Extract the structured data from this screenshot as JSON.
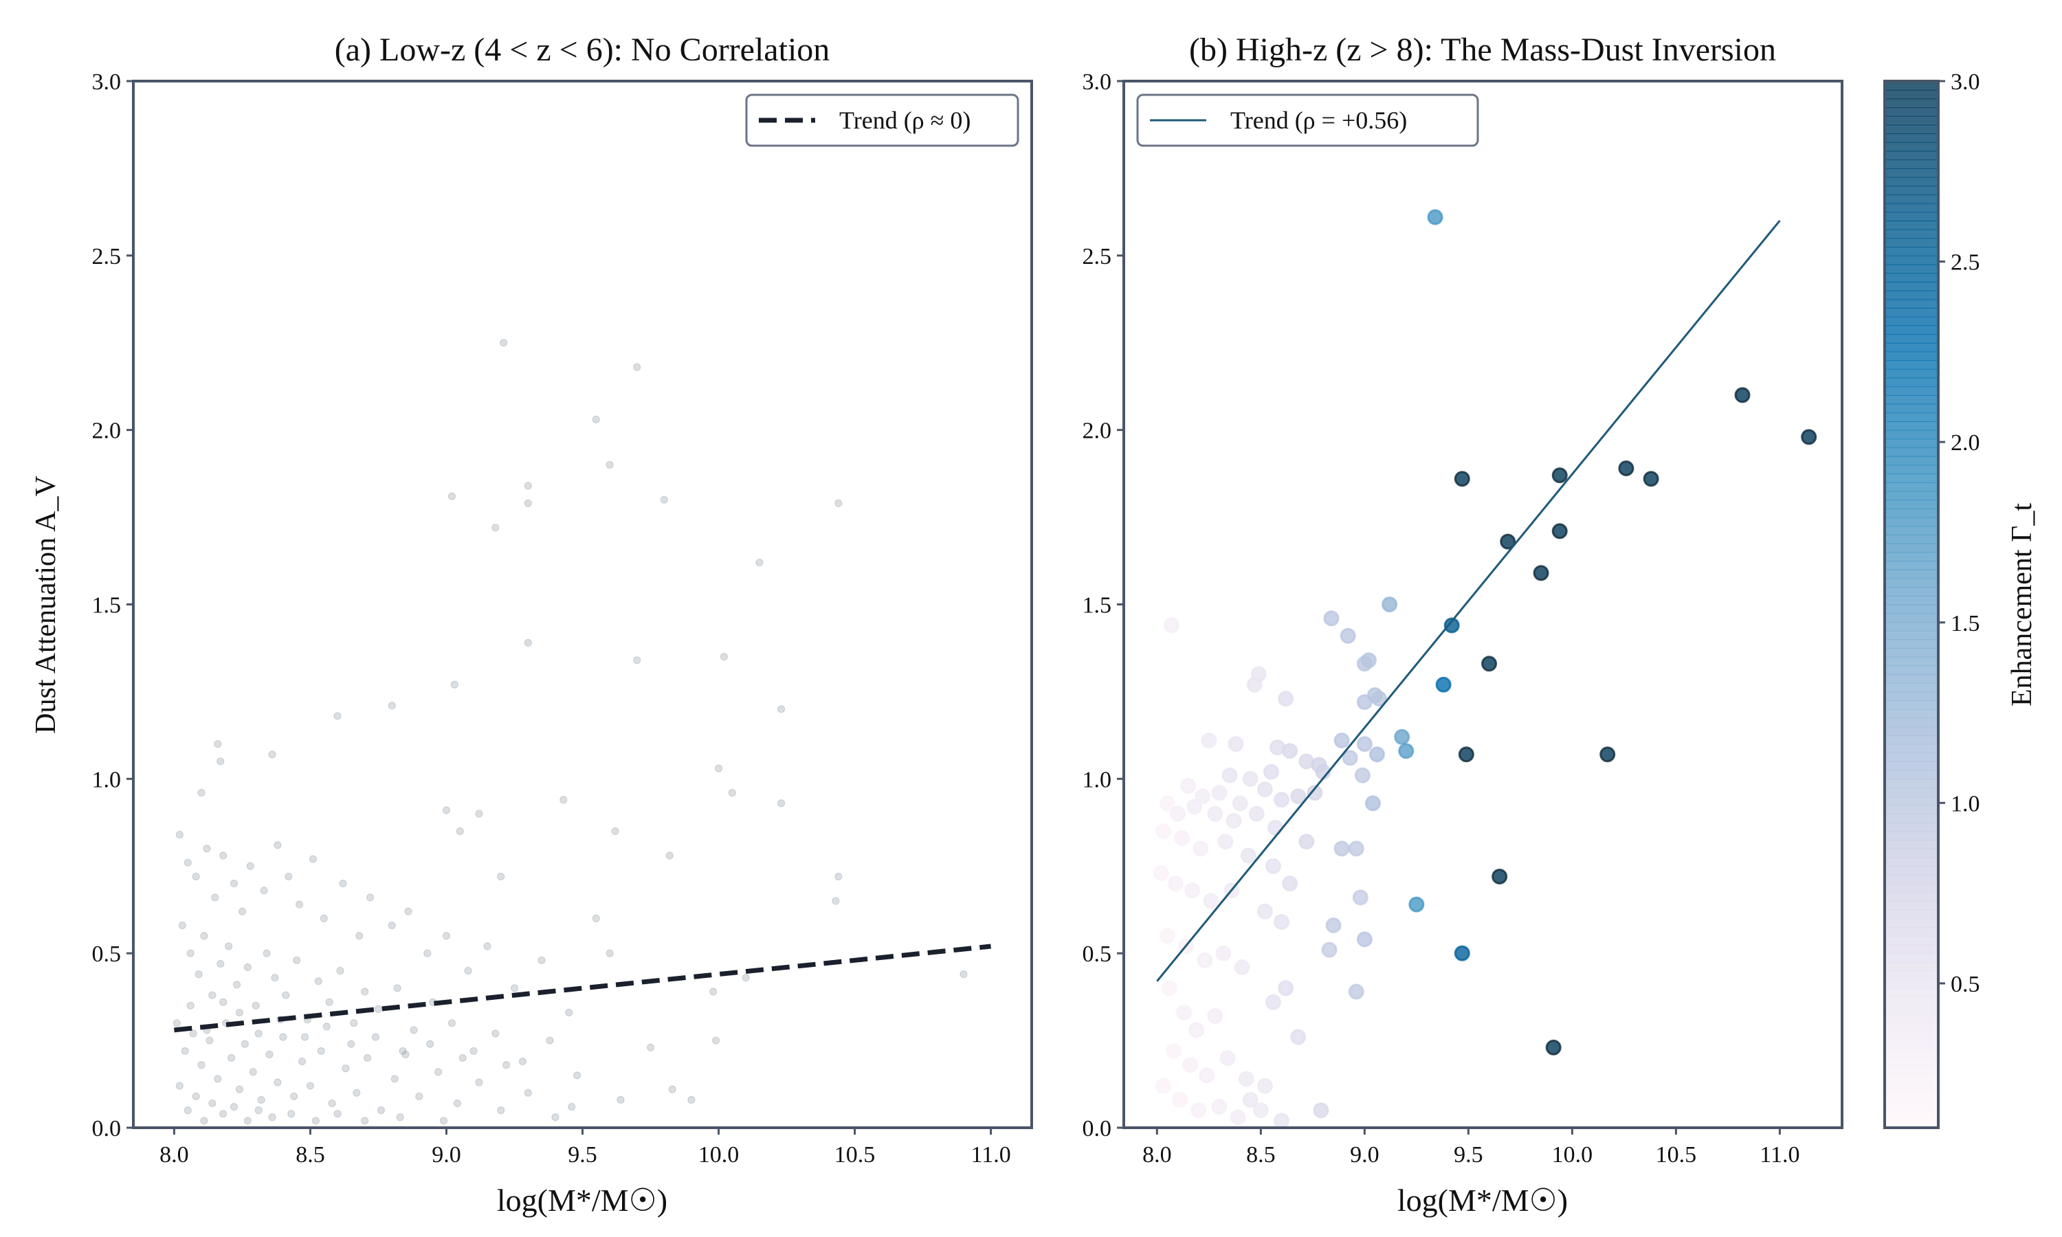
{
  "chart_data": [
    {
      "type": "scatter",
      "title": "(a) Low-z (4 < z < 6): No Correlation",
      "xlabel": "log(M*/M☉)",
      "ylabel": "Dust Attenuation A_V",
      "xlim": [
        7.85,
        11.15
      ],
      "ylim": [
        0,
        3.0
      ],
      "xticks": [
        "8.0",
        "8.5",
        "9.0",
        "9.5",
        "10.0",
        "10.5",
        "11.0"
      ],
      "yticks": [
        "0.0",
        "0.5",
        "1.0",
        "1.5",
        "2.0",
        "2.5",
        "3.0"
      ],
      "grid": false,
      "legend": {
        "placement": "top-right",
        "entries": [
          {
            "label": "Trend (ρ ≈ 0)",
            "style": "dashed",
            "color": "#1a202c"
          }
        ]
      },
      "point_color": "#8a949e",
      "trend": {
        "x": [
          8.0,
          11.0
        ],
        "y": [
          0.28,
          0.52
        ],
        "color": "#1a202c",
        "style": "dashed"
      },
      "points": [
        [
          9.21,
          2.25
        ],
        [
          9.7,
          2.18
        ],
        [
          9.55,
          2.03
        ],
        [
          9.6,
          1.9
        ],
        [
          9.02,
          1.81
        ],
        [
          9.3,
          1.84
        ],
        [
          9.3,
          1.79
        ],
        [
          9.8,
          1.8
        ],
        [
          10.44,
          1.79
        ],
        [
          9.18,
          1.72
        ],
        [
          10.15,
          1.62
        ],
        [
          9.3,
          1.39
        ],
        [
          9.7,
          1.34
        ],
        [
          10.02,
          1.35
        ],
        [
          9.03,
          1.27
        ],
        [
          8.8,
          1.21
        ],
        [
          10.23,
          1.2
        ],
        [
          8.6,
          1.18
        ],
        [
          8.16,
          1.1
        ],
        [
          8.17,
          1.05
        ],
        [
          8.36,
          1.07
        ],
        [
          8.1,
          0.96
        ],
        [
          10.0,
          1.03
        ],
        [
          10.05,
          0.96
        ],
        [
          10.23,
          0.93
        ],
        [
          9.43,
          0.94
        ],
        [
          9.0,
          0.91
        ],
        [
          9.12,
          0.9
        ],
        [
          9.05,
          0.85
        ],
        [
          9.62,
          0.85
        ],
        [
          9.82,
          0.78
        ],
        [
          10.44,
          0.72
        ],
        [
          10.43,
          0.65
        ],
        [
          10.9,
          0.44
        ],
        [
          9.2,
          0.72
        ],
        [
          10.1,
          0.43
        ],
        [
          9.98,
          0.39
        ],
        [
          9.99,
          0.25
        ],
        [
          9.55,
          0.6
        ],
        [
          9.6,
          0.5
        ],
        [
          9.75,
          0.23
        ],
        [
          9.83,
          0.11
        ],
        [
          9.64,
          0.08
        ],
        [
          9.46,
          0.06
        ],
        [
          9.9,
          0.08
        ],
        [
          8.02,
          0.84
        ],
        [
          8.05,
          0.76
        ],
        [
          8.08,
          0.72
        ],
        [
          8.12,
          0.8
        ],
        [
          8.15,
          0.66
        ],
        [
          8.18,
          0.78
        ],
        [
          8.22,
          0.7
        ],
        [
          8.25,
          0.62
        ],
        [
          8.28,
          0.75
        ],
        [
          8.33,
          0.68
        ],
        [
          8.38,
          0.81
        ],
        [
          8.42,
          0.72
        ],
        [
          8.46,
          0.64
        ],
        [
          8.51,
          0.77
        ],
        [
          8.55,
          0.6
        ],
        [
          8.62,
          0.7
        ],
        [
          8.68,
          0.55
        ],
        [
          8.72,
          0.66
        ],
        [
          8.8,
          0.58
        ],
        [
          8.86,
          0.62
        ],
        [
          8.93,
          0.5
        ],
        [
          9.0,
          0.55
        ],
        [
          9.08,
          0.45
        ],
        [
          9.15,
          0.52
        ],
        [
          9.25,
          0.4
        ],
        [
          9.35,
          0.48
        ],
        [
          9.45,
          0.33
        ],
        [
          8.03,
          0.58
        ],
        [
          8.06,
          0.5
        ],
        [
          8.09,
          0.44
        ],
        [
          8.11,
          0.55
        ],
        [
          8.14,
          0.38
        ],
        [
          8.17,
          0.47
        ],
        [
          8.2,
          0.52
        ],
        [
          8.23,
          0.41
        ],
        [
          8.27,
          0.46
        ],
        [
          8.3,
          0.35
        ],
        [
          8.34,
          0.5
        ],
        [
          8.37,
          0.43
        ],
        [
          8.41,
          0.38
        ],
        [
          8.45,
          0.48
        ],
        [
          8.49,
          0.31
        ],
        [
          8.53,
          0.42
        ],
        [
          8.57,
          0.36
        ],
        [
          8.61,
          0.45
        ],
        [
          8.66,
          0.3
        ],
        [
          8.7,
          0.39
        ],
        [
          8.75,
          0.34
        ],
        [
          8.82,
          0.4
        ],
        [
          8.88,
          0.28
        ],
        [
          8.95,
          0.36
        ],
        [
          9.02,
          0.3
        ],
        [
          9.1,
          0.22
        ],
        [
          9.18,
          0.27
        ],
        [
          9.28,
          0.19
        ],
        [
          9.38,
          0.25
        ],
        [
          9.48,
          0.15
        ],
        [
          8.01,
          0.3
        ],
        [
          8.04,
          0.22
        ],
        [
          8.07,
          0.27
        ],
        [
          8.1,
          0.18
        ],
        [
          8.13,
          0.25
        ],
        [
          8.16,
          0.14
        ],
        [
          8.19,
          0.3
        ],
        [
          8.21,
          0.2
        ],
        [
          8.24,
          0.11
        ],
        [
          8.26,
          0.24
        ],
        [
          8.29,
          0.16
        ],
        [
          8.32,
          0.08
        ],
        [
          8.35,
          0.21
        ],
        [
          8.38,
          0.13
        ],
        [
          8.4,
          0.26
        ],
        [
          8.44,
          0.09
        ],
        [
          8.47,
          0.19
        ],
        [
          8.5,
          0.12
        ],
        [
          8.54,
          0.22
        ],
        [
          8.58,
          0.07
        ],
        [
          8.63,
          0.17
        ],
        [
          8.67,
          0.1
        ],
        [
          8.71,
          0.2
        ],
        [
          8.76,
          0.05
        ],
        [
          8.81,
          0.14
        ],
        [
          8.85,
          0.21
        ],
        [
          8.9,
          0.09
        ],
        [
          8.97,
          0.16
        ],
        [
          9.04,
          0.07
        ],
        [
          9.12,
          0.13
        ],
        [
          9.2,
          0.05
        ],
        [
          9.3,
          0.1
        ],
        [
          9.4,
          0.03
        ],
        [
          8.02,
          0.12
        ],
        [
          8.05,
          0.05
        ],
        [
          8.08,
          0.09
        ],
        [
          8.11,
          0.02
        ],
        [
          8.14,
          0.07
        ],
        [
          8.18,
          0.04
        ],
        [
          8.22,
          0.06
        ],
        [
          8.27,
          0.02
        ],
        [
          8.31,
          0.05
        ],
        [
          8.36,
          0.03
        ],
        [
          8.43,
          0.04
        ],
        [
          8.52,
          0.02
        ],
        [
          8.6,
          0.04
        ],
        [
          8.7,
          0.02
        ],
        [
          8.83,
          0.03
        ],
        [
          8.99,
          0.02
        ],
        [
          8.06,
          0.35
        ],
        [
          8.12,
          0.28
        ],
        [
          8.18,
          0.36
        ],
        [
          8.24,
          0.33
        ],
        [
          8.31,
          0.27
        ],
        [
          8.39,
          0.31
        ],
        [
          8.48,
          0.26
        ],
        [
          8.56,
          0.29
        ],
        [
          8.65,
          0.24
        ],
        [
          8.74,
          0.26
        ],
        [
          8.84,
          0.22
        ],
        [
          8.94,
          0.24
        ],
        [
          9.06,
          0.2
        ],
        [
          9.22,
          0.18
        ]
      ]
    },
    {
      "type": "scatter",
      "title": "(b) High-z (z > 8): The Mass-Dust Inversion",
      "xlabel": "log(M*/M☉)",
      "xlim": [
        7.84,
        11.3
      ],
      "ylim": [
        0,
        3.0
      ],
      "xticks": [
        "8.0",
        "8.5",
        "9.0",
        "9.5",
        "10.0",
        "10.5",
        "11.0"
      ],
      "yticks": [
        "0.0",
        "0.5",
        "1.0",
        "1.5",
        "2.0",
        "2.5",
        "3.0"
      ],
      "grid": false,
      "legend": {
        "placement": "top-left",
        "entries": [
          {
            "label": "Trend (ρ = +0.56)",
            "style": "solid",
            "color": "#1f5a7a"
          }
        ]
      },
      "trend": {
        "x": [
          8.0,
          11.0
        ],
        "y": [
          0.42,
          2.6
        ],
        "color": "#1f5a7a",
        "style": "solid"
      },
      "colormap": "PuBu",
      "colorbar": {
        "label": "Enhancement Γ_t",
        "range": [
          0.1,
          3.0
        ],
        "ticks": [
          "0.5",
          "1.0",
          "1.5",
          "2.0",
          "2.5",
          "3.0"
        ]
      },
      "points_x_y_gamma": [
        [
          9.34,
          2.61,
          1.8
        ],
        [
          9.47,
          1.86,
          3.0
        ],
        [
          9.94,
          1.87,
          3.0
        ],
        [
          10.26,
          1.89,
          3.0
        ],
        [
          10.38,
          1.86,
          3.0
        ],
        [
          10.82,
          2.1,
          3.0
        ],
        [
          11.14,
          1.98,
          3.0
        ],
        [
          9.69,
          1.68,
          3.0
        ],
        [
          9.94,
          1.71,
          3.0
        ],
        [
          9.85,
          1.59,
          3.0
        ],
        [
          9.42,
          1.44,
          2.6
        ],
        [
          9.6,
          1.33,
          3.0
        ],
        [
          9.38,
          1.27,
          2.3
        ],
        [
          9.49,
          1.07,
          3.0
        ],
        [
          10.17,
          1.07,
          3.0
        ],
        [
          9.65,
          0.72,
          3.0
        ],
        [
          9.47,
          0.5,
          2.5
        ],
        [
          9.91,
          0.23,
          3.0
        ],
        [
          9.25,
          0.64,
          1.8
        ],
        [
          9.18,
          1.12,
          1.6
        ],
        [
          9.2,
          1.08,
          1.7
        ],
        [
          9.12,
          1.5,
          1.3
        ],
        [
          8.84,
          1.46,
          1.0
        ],
        [
          8.92,
          1.41,
          1.0
        ],
        [
          9.02,
          1.34,
          1.05
        ],
        [
          9.0,
          1.33,
          1.0
        ],
        [
          9.05,
          1.24,
          1.05
        ],
        [
          9.07,
          1.23,
          1.0
        ],
        [
          9.0,
          1.22,
          1.0
        ],
        [
          8.89,
          1.11,
          1.0
        ],
        [
          9.0,
          1.1,
          1.0
        ],
        [
          9.06,
          1.07,
          1.1
        ],
        [
          8.93,
          1.06,
          0.95
        ],
        [
          8.99,
          1.01,
          0.95
        ],
        [
          9.04,
          0.93,
          1.1
        ],
        [
          8.89,
          0.8,
          0.95
        ],
        [
          8.96,
          0.8,
          0.95
        ],
        [
          8.98,
          0.66,
          0.9
        ],
        [
          9.0,
          0.54,
          1.0
        ],
        [
          8.85,
          0.58,
          0.95
        ],
        [
          8.83,
          0.51,
          0.9
        ],
        [
          8.96,
          0.39,
          0.95
        ],
        [
          8.79,
          0.05,
          0.7
        ],
        [
          8.68,
          0.26,
          0.6
        ],
        [
          8.07,
          1.44,
          0.3
        ],
        [
          8.49,
          1.3,
          0.5
        ],
        [
          8.47,
          1.27,
          0.5
        ],
        [
          8.62,
          1.23,
          0.6
        ],
        [
          8.25,
          1.11,
          0.4
        ],
        [
          8.38,
          1.1,
          0.5
        ],
        [
          8.58,
          1.09,
          0.6
        ],
        [
          8.64,
          1.08,
          0.7
        ],
        [
          8.72,
          1.05,
          0.7
        ],
        [
          8.78,
          1.04,
          0.8
        ],
        [
          8.8,
          1.02,
          0.8
        ],
        [
          8.55,
          1.02,
          0.6
        ],
        [
          8.45,
          1.0,
          0.5
        ],
        [
          8.35,
          1.01,
          0.5
        ],
        [
          8.15,
          0.98,
          0.3
        ],
        [
          8.22,
          0.95,
          0.35
        ],
        [
          8.3,
          0.96,
          0.4
        ],
        [
          8.4,
          0.93,
          0.45
        ],
        [
          8.52,
          0.97,
          0.55
        ],
        [
          8.6,
          0.94,
          0.6
        ],
        [
          8.68,
          0.95,
          0.7
        ],
        [
          8.76,
          0.96,
          0.75
        ],
        [
          8.05,
          0.93,
          0.2
        ],
        [
          8.1,
          0.9,
          0.3
        ],
        [
          8.18,
          0.92,
          0.35
        ],
        [
          8.28,
          0.9,
          0.4
        ],
        [
          8.37,
          0.88,
          0.45
        ],
        [
          8.48,
          0.9,
          0.5
        ],
        [
          8.57,
          0.86,
          0.55
        ],
        [
          8.72,
          0.82,
          0.7
        ],
        [
          8.03,
          0.85,
          0.2
        ],
        [
          8.12,
          0.83,
          0.25
        ],
        [
          8.21,
          0.8,
          0.3
        ],
        [
          8.33,
          0.82,
          0.4
        ],
        [
          8.44,
          0.78,
          0.5
        ],
        [
          8.56,
          0.75,
          0.55
        ],
        [
          8.64,
          0.7,
          0.6
        ],
        [
          8.02,
          0.73,
          0.2
        ],
        [
          8.09,
          0.7,
          0.25
        ],
        [
          8.17,
          0.68,
          0.3
        ],
        [
          8.26,
          0.65,
          0.35
        ],
        [
          8.36,
          0.68,
          0.4
        ],
        [
          8.52,
          0.62,
          0.5
        ],
        [
          8.6,
          0.59,
          0.55
        ],
        [
          8.05,
          0.55,
          0.2
        ],
        [
          8.14,
          0.52,
          0.25
        ],
        [
          8.23,
          0.48,
          0.3
        ],
        [
          8.32,
          0.5,
          0.35
        ],
        [
          8.41,
          0.46,
          0.4
        ],
        [
          8.56,
          0.36,
          0.55
        ],
        [
          8.62,
          0.4,
          0.6
        ],
        [
          8.06,
          0.4,
          0.2
        ],
        [
          8.13,
          0.33,
          0.25
        ],
        [
          8.19,
          0.28,
          0.3
        ],
        [
          8.28,
          0.32,
          0.35
        ],
        [
          8.08,
          0.22,
          0.2
        ],
        [
          8.16,
          0.18,
          0.25
        ],
        [
          8.24,
          0.15,
          0.3
        ],
        [
          8.34,
          0.2,
          0.35
        ],
        [
          8.43,
          0.14,
          0.4
        ],
        [
          8.52,
          0.12,
          0.45
        ],
        [
          8.03,
          0.12,
          0.2
        ],
        [
          8.11,
          0.08,
          0.2
        ],
        [
          8.2,
          0.05,
          0.25
        ],
        [
          8.3,
          0.06,
          0.3
        ],
        [
          8.39,
          0.03,
          0.35
        ],
        [
          8.5,
          0.05,
          0.4
        ],
        [
          8.6,
          0.02,
          0.5
        ],
        [
          8.45,
          0.08,
          0.45
        ]
      ]
    }
  ]
}
